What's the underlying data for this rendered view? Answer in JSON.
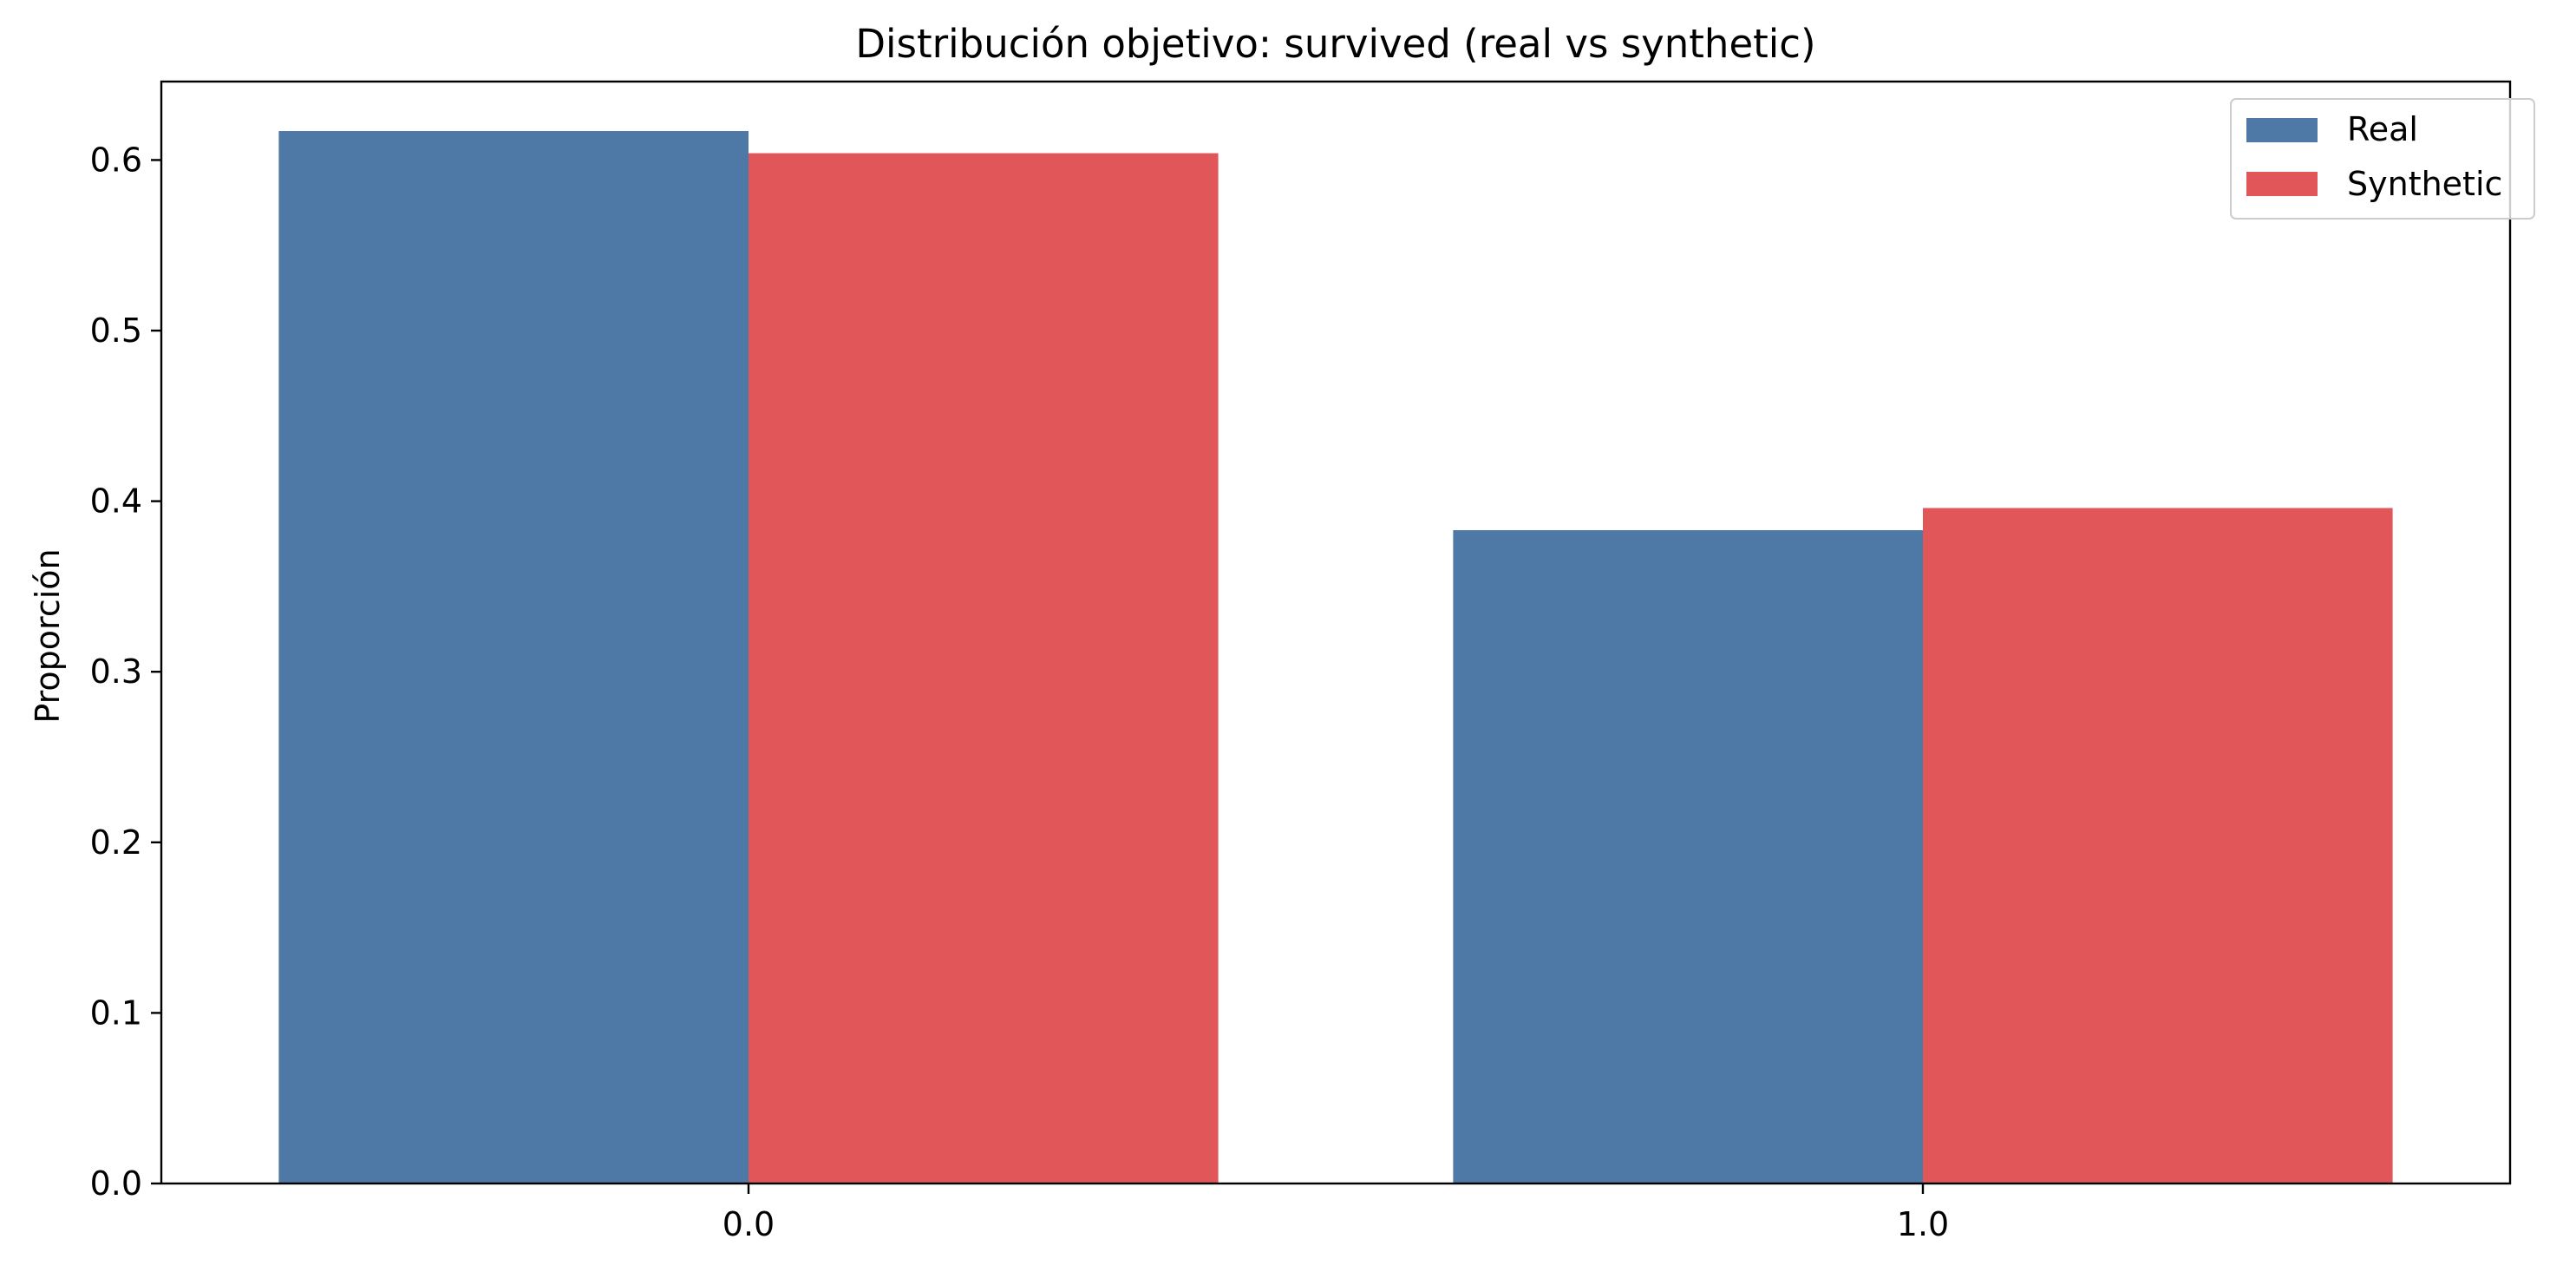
{
  "chart_data": {
    "type": "bar",
    "title": "Distribución objetivo: survived (real vs synthetic)",
    "xlabel": "",
    "ylabel": "Proporción",
    "categories": [
      "0.0",
      "1.0"
    ],
    "series": [
      {
        "name": "Real",
        "values": [
          0.617,
          0.383
        ],
        "color": "#4e79a7"
      },
      {
        "name": "Synthetic",
        "values": [
          0.604,
          0.396
        ],
        "color": "#e15759"
      }
    ],
    "ylim": [
      0,
      0.646
    ],
    "yticks": [
      0.0,
      0.1,
      0.2,
      0.3,
      0.4,
      0.5,
      0.6
    ],
    "ytick_labels": [
      "0.0",
      "0.1",
      "0.2",
      "0.3",
      "0.4",
      "0.5",
      "0.6"
    ],
    "grid": false,
    "legend_position": "top-right"
  }
}
